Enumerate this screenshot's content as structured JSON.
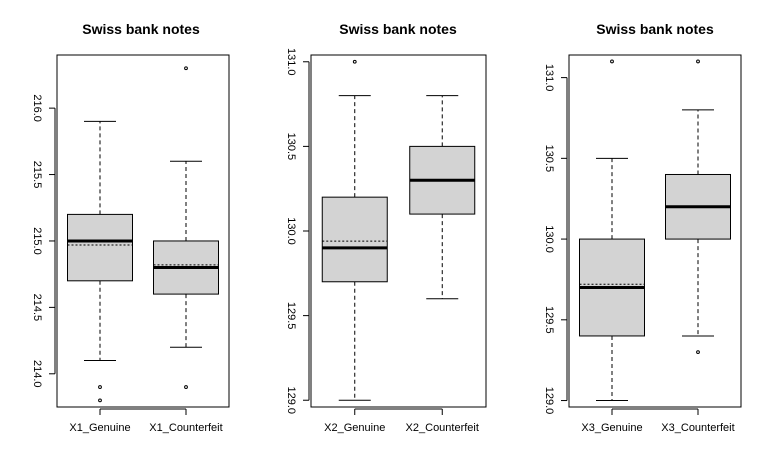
{
  "chart_data": [
    {
      "type": "box",
      "title": "Swiss bank notes",
      "xlabel": "",
      "ylabel": "",
      "ylim": [
        213.75,
        216.4
      ],
      "yticks": [
        214.0,
        214.5,
        215.0,
        215.5,
        216.0
      ],
      "ytick_labels": [
        "214.0",
        "214.5",
        "215.0",
        "215.5",
        "216.0"
      ],
      "categories": [
        "X1_Genuine",
        "X1_Counterfeit"
      ],
      "boxes": [
        {
          "whisker_low": 214.1,
          "q1": 214.7,
          "median": 215.0,
          "q3": 215.2,
          "whisker_high": 215.9,
          "mean": 214.97,
          "outliers": [
            213.9,
            213.8
          ]
        },
        {
          "whisker_low": 214.2,
          "q1": 214.6,
          "median": 214.8,
          "q3": 215.0,
          "whisker_high": 215.6,
          "mean": 214.82,
          "outliers": [
            216.3,
            213.9
          ]
        }
      ]
    },
    {
      "type": "box",
      "title": "Swiss bank notes",
      "xlabel": "",
      "ylabel": "",
      "ylim": [
        128.96,
        131.04
      ],
      "yticks": [
        129.0,
        129.5,
        130.0,
        130.5,
        131.0
      ],
      "ytick_labels": [
        "129.0",
        "129.5",
        "130.0",
        "130.5",
        "131.0"
      ],
      "categories": [
        "X2_Genuine",
        "X2_Counterfeit"
      ],
      "boxes": [
        {
          "whisker_low": 129.0,
          "q1": 129.7,
          "median": 129.9,
          "q3": 130.2,
          "whisker_high": 130.8,
          "mean": 129.94,
          "outliers": [
            131.0
          ]
        },
        {
          "whisker_low": 129.6,
          "q1": 130.1,
          "median": 130.3,
          "q3": 130.5,
          "whisker_high": 130.8,
          "mean": 130.3,
          "outliers": []
        }
      ]
    },
    {
      "type": "box",
      "title": "Swiss bank notes",
      "xlabel": "",
      "ylabel": "",
      "ylim": [
        128.96,
        131.14
      ],
      "yticks": [
        129.0,
        129.5,
        130.0,
        130.5,
        131.0
      ],
      "ytick_labels": [
        "129.0",
        "129.5",
        "130.0",
        "130.5",
        "131.0"
      ],
      "categories": [
        "X3_Genuine",
        "X3_Counterfeit"
      ],
      "boxes": [
        {
          "whisker_low": 129.0,
          "q1": 129.4,
          "median": 129.7,
          "q3": 130.0,
          "whisker_high": 130.5,
          "mean": 129.72,
          "outliers": [
            131.1
          ]
        },
        {
          "whisker_low": 129.4,
          "q1": 130.0,
          "median": 130.2,
          "q3": 130.4,
          "whisker_high": 130.8,
          "mean": 130.2,
          "outliers": [
            131.1,
            129.3
          ]
        }
      ]
    }
  ],
  "style": {
    "box_fill": "#d3d3d3",
    "stroke": "#000000",
    "grid": false,
    "legend": "none",
    "median_line": "thick solid",
    "mean_line": "dotted"
  }
}
